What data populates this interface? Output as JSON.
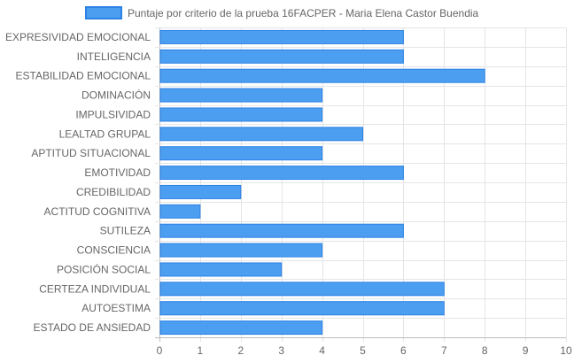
{
  "chart_data": {
    "type": "bar",
    "orientation": "horizontal",
    "categories": [
      "EXPRESIVIDAD EMOCIONAL",
      "INTELIGENCIA",
      "ESTABILIDAD EMOCIONAL",
      "DOMINACIÓN",
      "IMPULSIVIDAD",
      "LEALTAD GRUPAL",
      "APTITUD SITUACIONAL",
      "EMOTIVIDAD",
      "CREDIBILIDAD",
      "ACTITUD COGNITIVA",
      "SUTILEZA",
      "CONSCIENCIA",
      "POSICIÓN SOCIAL",
      "CERTEZA INDIVIDUAL",
      "AUTOESTIMA",
      "ESTADO DE ANSIEDAD"
    ],
    "series": [
      {
        "name": "Puntaje por criterio de la prueba 16FACPER - Maria Elena Castor Buendia",
        "values": [
          6,
          6,
          8,
          4,
          4,
          5,
          4,
          6,
          2,
          1,
          6,
          4,
          3,
          7,
          7,
          4
        ]
      }
    ],
    "xlim": [
      0,
      10
    ],
    "xticks": [
      "0",
      "1",
      "2",
      "3",
      "4",
      "5",
      "6",
      "7",
      "8",
      "9",
      "10"
    ],
    "grid": true,
    "legend": "top-center",
    "colors": {
      "bar_fill": "#4c9ef0",
      "bar_stroke": "#2c82e6",
      "grid": "#e5e5e5",
      "axis": "#bbbbbb",
      "text": "#666666"
    }
  }
}
